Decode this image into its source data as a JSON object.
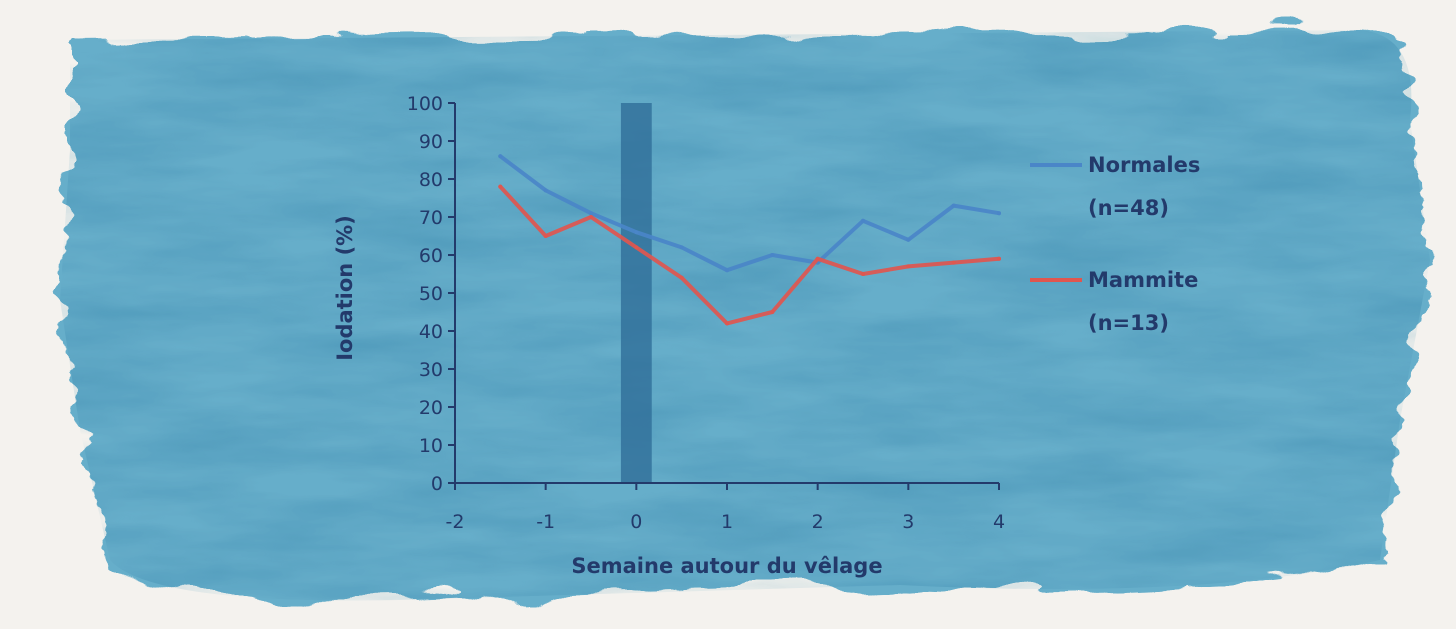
{
  "colors": {
    "background": "#f4f2ee",
    "watercolor": "#5aa9c7",
    "axis": "#233a6b",
    "text": "#233a6b",
    "band": "#2f6e98"
  },
  "chart_data": {
    "type": "line",
    "title": "",
    "xlabel": "Semaine autour du vêlage",
    "ylabel": "Iodation (%)",
    "xlim": [
      -2,
      4
    ],
    "ylim": [
      0,
      100
    ],
    "x_ticks": [
      -2,
      -1,
      0,
      1,
      2,
      3,
      4
    ],
    "y_ticks": [
      0,
      10,
      20,
      30,
      40,
      50,
      60,
      70,
      80,
      90,
      100
    ],
    "grid": false,
    "legend_position": "right",
    "highlight_band": {
      "x_from": -0.17,
      "x_to": 0.17,
      "color": "#2f6e98"
    },
    "series": [
      {
        "name": "Normales",
        "count_label": "(n=48)",
        "color": "#4a86c8",
        "x": [
          -1.5,
          -1,
          -0.5,
          0,
          0.5,
          1,
          1.5,
          2,
          2.5,
          3,
          3.5,
          4
        ],
        "y": [
          86,
          77,
          71,
          66,
          62,
          56,
          60,
          58,
          69,
          64,
          73,
          71
        ]
      },
      {
        "name": "Mammite",
        "count_label": "(n=13)",
        "color": "#e0564f",
        "x": [
          -1.5,
          -1,
          -0.5,
          0,
          0.5,
          1,
          1.5,
          2,
          2.5,
          3,
          3.5,
          4
        ],
        "y": [
          78,
          65,
          70,
          62,
          54,
          42,
          45,
          59,
          55,
          57,
          58,
          59
        ]
      }
    ]
  }
}
